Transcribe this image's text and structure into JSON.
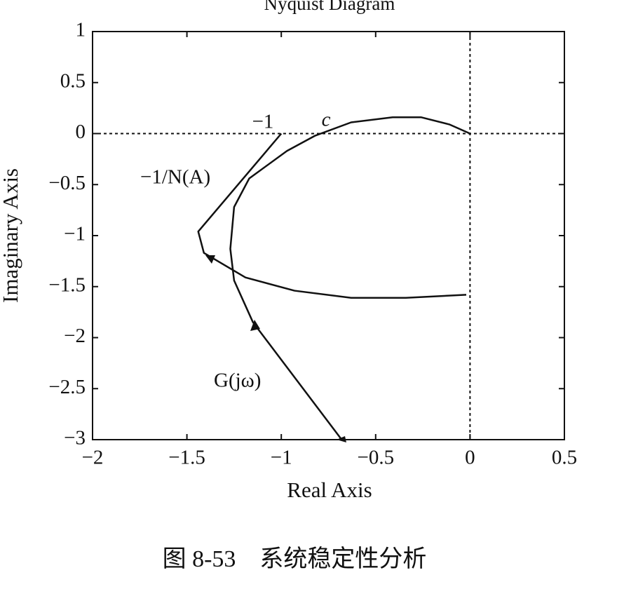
{
  "chart_data": {
    "type": "line",
    "title": "Nyquist Diagram",
    "x_label": "Real Axis",
    "y_label": "Imaginary Axis",
    "caption": "图 8-53　系统稳定性分析",
    "annotations": [
      "−1",
      "c"
    ],
    "xlim": [
      -2,
      0.5
    ],
    "ylim": [
      -3,
      1
    ],
    "xticks": [
      {
        "value": -2,
        "label": "−2"
      },
      {
        "value": -1.5,
        "label": "−1.5"
      },
      {
        "value": -1,
        "label": "−1"
      },
      {
        "value": -0.5,
        "label": "−0.5"
      },
      0,
      0.5
    ],
    "yticks": [
      1,
      0.5,
      0,
      {
        "value": -0.5,
        "label": "−0.5"
      },
      {
        "value": -1,
        "label": "−1"
      },
      {
        "value": -1.5,
        "label": "−1.5"
      },
      {
        "value": -2,
        "label": "−2"
      },
      {
        "value": -2.5,
        "label": "−2.5"
      },
      {
        "value": -3,
        "label": "−3"
      }
    ],
    "series": [
      {
        "name": "G(jω)",
        "color": "#111111",
        "x": [
          -0.68,
          -1.15,
          -1.25,
          -1.27,
          -1.25,
          -1.17,
          -0.97,
          -0.82,
          -0.63,
          -0.41,
          -0.26,
          -0.11,
          0
        ],
        "y": [
          -3,
          -1.85,
          -1.44,
          -1.13,
          -0.72,
          -0.44,
          -0.17,
          -0.02,
          0.11,
          0.16,
          0.16,
          0.09,
          0
        ]
      },
      {
        "name": "−1/N(A)",
        "color": "#111111",
        "x": [
          -1,
          -1.44,
          -1.41,
          -1.19,
          -0.93,
          -0.63,
          -0.34,
          -0.02
        ],
        "y": [
          0,
          -0.96,
          -1.17,
          -1.41,
          -1.54,
          -1.61,
          -1.61,
          -1.58
        ]
      }
    ]
  }
}
